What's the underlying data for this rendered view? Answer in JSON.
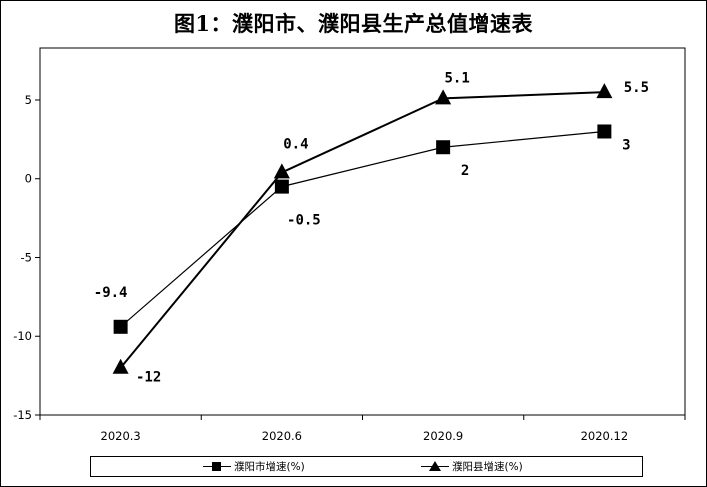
{
  "chart_data": {
    "type": "line",
    "title": "图1：濮阳市、濮阳县生产总值增速表",
    "categories": [
      "2020.3",
      "2020.6",
      "2020.9",
      "2020.12"
    ],
    "ylim": [
      -15,
      5
    ],
    "yticks": [
      "-15",
      "-10",
      "-5",
      "0",
      "5"
    ],
    "grid": false,
    "legend_position": "bottom",
    "series": [
      {
        "name": "濮阳市增速(%)",
        "marker": "square",
        "color": "#000000",
        "values": [
          -9.4,
          -0.5,
          2,
          3
        ],
        "labels": [
          "-9.4",
          "-0.5",
          "2",
          "3"
        ]
      },
      {
        "name": "濮阳县增速(%)",
        "marker": "triangle",
        "color": "#000000",
        "values": [
          -12,
          0.4,
          5.1,
          5.5
        ],
        "labels": [
          "-12",
          "0.4",
          "5.1",
          "5.5"
        ]
      }
    ]
  }
}
